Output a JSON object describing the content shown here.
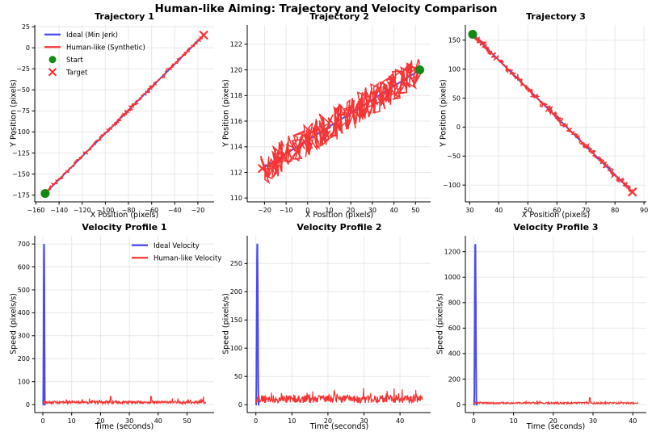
{
  "figure": {
    "suptitle": "Human-like Aiming: Trajectory and Velocity Comparison",
    "colors": {
      "ideal": "#4a4af0",
      "human": "#f53535",
      "start": "#128912",
      "target": "#f53535",
      "grid": "#e8e8e8",
      "axis": "#000000",
      "background": "#ffffff"
    }
  },
  "chart_data": [
    {
      "type": "line",
      "title": "Trajectory 1",
      "xlabel": "X Position (pixels)",
      "ylabel": "Y Position (pixels)",
      "xlim": [
        -161,
        -6
      ],
      "ylim": [
        -183,
        27
      ],
      "xticks": [
        -160,
        -140,
        -120,
        -100,
        -80,
        -60,
        -40,
        -20
      ],
      "yticks": [
        25,
        0,
        -25,
        -50,
        -75,
        -100,
        -125,
        -150,
        -175
      ],
      "grid": true,
      "start": [
        -152,
        -173
      ],
      "target": [
        -15,
        15
      ],
      "human_noise": {
        "x": 1.6,
        "y": 1.8,
        "points": 280,
        "seed": 7
      },
      "legend": {
        "loc": "upper-left",
        "entries": [
          {
            "label": "Ideal (Min Jerk)",
            "swatch": "line",
            "color_key": "ideal"
          },
          {
            "label": "Human-like (Synthetic)",
            "swatch": "line",
            "color_key": "human"
          },
          {
            "label": "Start",
            "swatch": "dot",
            "color_key": "start"
          },
          {
            "label": "Target",
            "swatch": "x",
            "color_key": "target"
          }
        ]
      }
    },
    {
      "type": "line",
      "title": "Trajectory 2",
      "xlabel": "X Position (pixels)",
      "ylabel": "Y Position (pixels)",
      "xlim": [
        -28,
        57
      ],
      "ylim": [
        109.7,
        123.5
      ],
      "xticks": [
        -20,
        -10,
        0,
        10,
        20,
        30,
        40,
        50
      ],
      "yticks": [
        110,
        112,
        114,
        116,
        118,
        120,
        122
      ],
      "grid": true,
      "start": [
        52,
        120
      ],
      "target": [
        -21,
        112.3
      ],
      "human_noise": {
        "x": 2.6,
        "y": 1.25,
        "points": 420,
        "seed": 13
      },
      "legend": null
    },
    {
      "type": "line",
      "title": "Trajectory 3",
      "xlabel": "X Position (pixels)",
      "ylabel": "Y Position (pixels)",
      "xlim": [
        28.5,
        90.8
      ],
      "ylim": [
        -129,
        176
      ],
      "xticks": [
        30,
        40,
        50,
        60,
        70,
        80,
        90
      ],
      "yticks": [
        150,
        100,
        50,
        0,
        -50,
        -100
      ],
      "grid": true,
      "start": [
        31,
        160
      ],
      "target": [
        86,
        -112
      ],
      "human_noise": {
        "x": 0.9,
        "y": 5.0,
        "points": 300,
        "seed": 19
      },
      "legend": null
    },
    {
      "type": "line",
      "title": "Velocity Profile 1",
      "xlabel": "Time (seconds)",
      "ylabel": "Speed (pixels/s)",
      "xlim": [
        -2.8,
        59.4
      ],
      "ylim": [
        -35,
        736
      ],
      "xticks": [
        0,
        10,
        20,
        30,
        40,
        50
      ],
      "yticks": [
        0,
        100,
        200,
        300,
        400,
        500,
        600,
        700
      ],
      "grid": true,
      "ideal_spike": {
        "center": 0.42,
        "half_width": 0.32,
        "peak": 700
      },
      "human_velocity": {
        "duration": 56.5,
        "base": 4,
        "amp": 12,
        "spike_prob": 0.05,
        "spike_amp": 20,
        "bumps": [
          [
            23.5,
            22
          ],
          [
            37.6,
            28
          ]
        ],
        "points": 430,
        "seed": 29
      },
      "legend": {
        "loc": "upper-right",
        "entries": [
          {
            "label": "Ideal Velocity",
            "swatch": "line",
            "color_key": "ideal"
          },
          {
            "label": "Human-like Velocity",
            "swatch": "line",
            "color_key": "human"
          }
        ]
      }
    },
    {
      "type": "line",
      "title": "Velocity Profile 2",
      "xlabel": "Time (seconds)",
      "ylabel": "Speed (pixels/s)",
      "xlim": [
        -2.4,
        48.5
      ],
      "ylim": [
        -14,
        299
      ],
      "xticks": [
        0,
        10,
        20,
        30,
        40
      ],
      "yticks": [
        0,
        50,
        100,
        150,
        200,
        250
      ],
      "grid": true,
      "ideal_spike": {
        "center": 0.4,
        "half_width": 0.35,
        "peak": 285
      },
      "human_velocity": {
        "duration": 46.2,
        "base": 3,
        "amp": 14,
        "spike_prob": 0.07,
        "spike_amp": 14,
        "bumps": [
          [
            21.8,
            8
          ],
          [
            44.5,
            10
          ]
        ],
        "points": 430,
        "seed": 37
      },
      "legend": null
    },
    {
      "type": "line",
      "title": "Velocity Profile 3",
      "xlabel": "Time (seconds)",
      "ylabel": "Speed (pixels/s)",
      "xlim": [
        -2.1,
        43.4
      ],
      "ylim": [
        -63,
        1325
      ],
      "xticks": [
        0,
        10,
        20,
        30,
        40
      ],
      "yticks": [
        0,
        200,
        400,
        600,
        800,
        1000,
        1200
      ],
      "grid": true,
      "ideal_spike": {
        "center": 0.4,
        "half_width": 0.3,
        "peak": 1260
      },
      "human_velocity": {
        "duration": 41.3,
        "base": 6,
        "amp": 12,
        "spike_prob": 0.02,
        "spike_amp": 15,
        "bumps": [
          [
            29.2,
            42
          ]
        ],
        "points": 420,
        "seed": 43
      },
      "legend": null
    }
  ]
}
